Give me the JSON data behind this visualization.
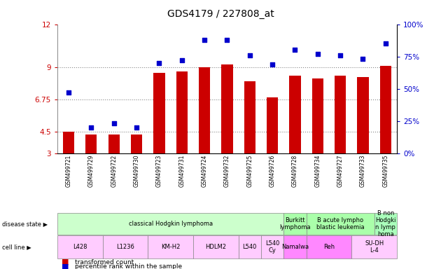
{
  "title": "GDS4179 / 227808_at",
  "samples": [
    "GSM499721",
    "GSM499729",
    "GSM499722",
    "GSM499730",
    "GSM499723",
    "GSM499731",
    "GSM499724",
    "GSM499732",
    "GSM499725",
    "GSM499726",
    "GSM499728",
    "GSM499734",
    "GSM499727",
    "GSM499733",
    "GSM499735"
  ],
  "bar_values": [
    4.5,
    4.3,
    4.3,
    4.3,
    8.6,
    8.7,
    9.0,
    9.2,
    8.0,
    6.9,
    8.4,
    8.2,
    8.4,
    8.3,
    9.1
  ],
  "dot_values": [
    47,
    20,
    23,
    20,
    70,
    72,
    88,
    88,
    76,
    69,
    80,
    77,
    76,
    73,
    85
  ],
  "ylim_left": [
    3,
    12
  ],
  "ylim_right": [
    0,
    100
  ],
  "yticks_left": [
    3,
    4.5,
    6.75,
    9,
    12
  ],
  "yticks_right": [
    0,
    25,
    50,
    75,
    100
  ],
  "bar_color": "#cc0000",
  "dot_color": "#0000cc",
  "disease_state_groups": [
    {
      "label": "classical Hodgkin lymphoma",
      "start": 0,
      "end": 10,
      "color": "#ccffcc"
    },
    {
      "label": "Burkitt\nlymphoma",
      "start": 10,
      "end": 11,
      "color": "#aaffaa"
    },
    {
      "label": "B acute lympho\nblastic leukemia",
      "start": 11,
      "end": 14,
      "color": "#aaffaa"
    },
    {
      "label": "B non\nHodgki\nn lymp\nhoma",
      "start": 14,
      "end": 15,
      "color": "#aaffbb"
    }
  ],
  "cell_line_groups": [
    {
      "label": "L428",
      "start": 0,
      "end": 2,
      "color": "#ffccff"
    },
    {
      "label": "L1236",
      "start": 2,
      "end": 4,
      "color": "#ffccff"
    },
    {
      "label": "KM-H2",
      "start": 4,
      "end": 6,
      "color": "#ffccff"
    },
    {
      "label": "HDLM2",
      "start": 6,
      "end": 8,
      "color": "#ffccff"
    },
    {
      "label": "L540",
      "start": 8,
      "end": 9,
      "color": "#ffccff"
    },
    {
      "label": "L540\nCy",
      "start": 9,
      "end": 10,
      "color": "#ffccff"
    },
    {
      "label": "Namalwa",
      "start": 10,
      "end": 11,
      "color": "#ff88ff"
    },
    {
      "label": "Reh",
      "start": 11,
      "end": 13,
      "color": "#ff88ff"
    },
    {
      "label": "SU-DH\nL-4",
      "start": 13,
      "end": 15,
      "color": "#ffccff"
    }
  ],
  "background_color": "#ffffff",
  "grid_color": "#888888"
}
